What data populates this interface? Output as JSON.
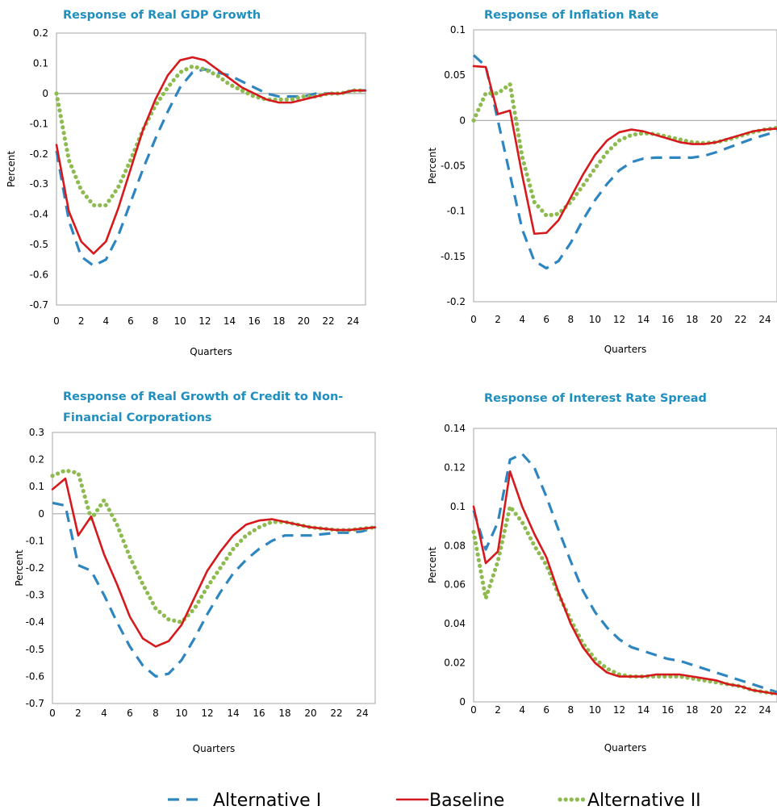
{
  "styles": {
    "Alternative I": {
      "color": "#2e86c1",
      "dash": "14,9",
      "width": 3.2,
      "cap": "butt"
    },
    "Baseline": {
      "color": "#d6191c",
      "dash": "",
      "width": 2.6,
      "cap": "round"
    },
    "Alternative II": {
      "color": "#8dbb4f",
      "dash": "0.1,7",
      "width": 5.2,
      "cap": "round"
    }
  },
  "legend": {
    "items": [
      "Alternative I",
      "Baseline",
      "Alternative II"
    ]
  },
  "chart_data": [
    {
      "type": "line",
      "title": [
        "Response of Real GDP Growth"
      ],
      "xlabel": "Quarters",
      "ylabel": "Percent",
      "xlim": [
        0,
        25
      ],
      "ylim": [
        -0.7,
        0.2
      ],
      "xticks": [
        0,
        2,
        4,
        6,
        8,
        10,
        12,
        14,
        16,
        18,
        20,
        22,
        24
      ],
      "yticks": [
        0.2,
        0.1,
        0,
        -0.1,
        -0.2,
        -0.3,
        -0.4,
        -0.5,
        -0.6,
        -0.7
      ],
      "yticklabels": [
        "0.2",
        "0.1",
        "0",
        "-0.1",
        "-0.2",
        "-0.3",
        "-0.4",
        "-0.5",
        "-0.6",
        "-0.7"
      ],
      "zero_line": true,
      "grid": false,
      "series": [
        {
          "name": "Alternative I",
          "x": [
            0,
            1,
            2,
            3,
            4,
            5,
            6,
            7,
            8,
            9,
            10,
            11,
            12,
            13,
            14,
            15,
            16,
            17,
            18,
            19,
            20,
            21,
            22,
            23,
            24,
            25
          ],
          "y": [
            -0.19,
            -0.42,
            -0.54,
            -0.57,
            -0.55,
            -0.47,
            -0.36,
            -0.25,
            -0.15,
            -0.06,
            0.02,
            0.07,
            0.08,
            0.07,
            0.06,
            0.04,
            0.02,
            0.0,
            -0.01,
            -0.01,
            -0.01,
            0.0,
            0.0,
            0.0,
            0.01,
            0.01
          ]
        },
        {
          "name": "Baseline",
          "x": [
            0,
            1,
            2,
            3,
            4,
            5,
            6,
            7,
            8,
            9,
            10,
            11,
            12,
            13,
            14,
            15,
            16,
            17,
            18,
            19,
            20,
            21,
            22,
            23,
            24,
            25
          ],
          "y": [
            -0.17,
            -0.39,
            -0.49,
            -0.53,
            -0.49,
            -0.38,
            -0.25,
            -0.12,
            -0.02,
            0.06,
            0.11,
            0.12,
            0.11,
            0.08,
            0.05,
            0.02,
            0.0,
            -0.02,
            -0.03,
            -0.03,
            -0.02,
            -0.01,
            0.0,
            0.0,
            0.01,
            0.01
          ]
        },
        {
          "name": "Alternative II",
          "x": [
            0,
            1,
            2,
            3,
            4,
            5,
            6,
            7,
            8,
            9,
            10,
            11,
            12,
            13,
            14,
            15,
            16,
            17,
            18,
            19,
            20,
            21,
            22,
            23,
            24,
            25
          ],
          "y": [
            0.0,
            -0.22,
            -0.32,
            -0.37,
            -0.37,
            -0.31,
            -0.22,
            -0.12,
            -0.04,
            0.02,
            0.07,
            0.09,
            0.08,
            0.06,
            0.03,
            0.01,
            -0.01,
            -0.02,
            -0.02,
            -0.02,
            -0.01,
            -0.01,
            0.0,
            0.0,
            0.01,
            0.01
          ]
        }
      ]
    },
    {
      "type": "line",
      "title": [
        "Response of Inflation Rate"
      ],
      "xlabel": "Quarters",
      "ylabel": "Percent",
      "xlim": [
        0,
        25
      ],
      "ylim": [
        -0.2,
        0.1
      ],
      "xticks": [
        0,
        2,
        4,
        6,
        8,
        10,
        12,
        14,
        16,
        18,
        20,
        22,
        24
      ],
      "yticks": [
        0.1,
        0.05,
        0,
        -0.05,
        -0.1,
        -0.15,
        -0.2
      ],
      "yticklabels": [
        "0.1",
        "0.05",
        "0",
        "-0.05",
        "-0.1",
        "-0.15",
        "-0.2"
      ],
      "zero_line": true,
      "grid": false,
      "series": [
        {
          "name": "Alternative I",
          "x": [
            0,
            1,
            2,
            3,
            4,
            5,
            6,
            7,
            8,
            9,
            10,
            11,
            12,
            13,
            14,
            15,
            16,
            17,
            18,
            19,
            20,
            21,
            22,
            23,
            24,
            25
          ],
          "y": [
            0.072,
            0.06,
            0.0,
            -0.06,
            -0.12,
            -0.155,
            -0.163,
            -0.155,
            -0.135,
            -0.11,
            -0.088,
            -0.07,
            -0.055,
            -0.046,
            -0.042,
            -0.041,
            -0.041,
            -0.041,
            -0.041,
            -0.039,
            -0.035,
            -0.03,
            -0.025,
            -0.02,
            -0.016,
            -0.012
          ]
        },
        {
          "name": "Baseline",
          "x": [
            0,
            1,
            2,
            3,
            4,
            5,
            6,
            7,
            8,
            9,
            10,
            11,
            12,
            13,
            14,
            15,
            16,
            17,
            18,
            19,
            20,
            21,
            22,
            23,
            24,
            25
          ],
          "y": [
            0.06,
            0.059,
            0.007,
            0.011,
            -0.06,
            -0.125,
            -0.124,
            -0.11,
            -0.085,
            -0.06,
            -0.038,
            -0.022,
            -0.013,
            -0.01,
            -0.012,
            -0.016,
            -0.02,
            -0.024,
            -0.026,
            -0.026,
            -0.024,
            -0.02,
            -0.016,
            -0.012,
            -0.01,
            -0.009
          ]
        },
        {
          "name": "Alternative II",
          "x": [
            0,
            1,
            2,
            3,
            4,
            5,
            6,
            7,
            8,
            9,
            10,
            11,
            12,
            13,
            14,
            15,
            16,
            17,
            18,
            19,
            20,
            21,
            22,
            23,
            24,
            25
          ],
          "y": [
            0.0,
            0.03,
            0.03,
            0.04,
            -0.04,
            -0.09,
            -0.105,
            -0.103,
            -0.09,
            -0.072,
            -0.053,
            -0.035,
            -0.022,
            -0.016,
            -0.014,
            -0.015,
            -0.018,
            -0.021,
            -0.024,
            -0.025,
            -0.024,
            -0.021,
            -0.017,
            -0.013,
            -0.01,
            -0.008
          ]
        }
      ]
    },
    {
      "type": "line",
      "title": [
        "Response of Real Growth of Credit to Non-",
        "Financial Corporations"
      ],
      "xlabel": "Quarters",
      "ylabel": "Percent",
      "xlim": [
        0,
        25
      ],
      "ylim": [
        -0.7,
        0.3
      ],
      "xticks": [
        0,
        2,
        4,
        6,
        8,
        10,
        12,
        14,
        16,
        18,
        20,
        22,
        24
      ],
      "yticks": [
        0.3,
        0.2,
        0.1,
        0,
        -0.1,
        -0.2,
        -0.3,
        -0.4,
        -0.5,
        -0.6,
        -0.7
      ],
      "yticklabels": [
        "0.3",
        "0.2",
        "0.1",
        "0",
        "-0.1",
        "-0.2",
        "-0.3",
        "-0.4",
        "-0.5",
        "-0.6",
        "-0.7"
      ],
      "zero_line": true,
      "grid": false,
      "series": [
        {
          "name": "Alternative I",
          "x": [
            0,
            1,
            2,
            3,
            4,
            5,
            6,
            7,
            8,
            9,
            10,
            11,
            12,
            13,
            14,
            15,
            16,
            17,
            18,
            19,
            20,
            21,
            22,
            23,
            24,
            25
          ],
          "y": [
            0.04,
            0.03,
            -0.19,
            -0.21,
            -0.3,
            -0.4,
            -0.49,
            -0.56,
            -0.6,
            -0.59,
            -0.54,
            -0.46,
            -0.37,
            -0.29,
            -0.22,
            -0.17,
            -0.13,
            -0.1,
            -0.08,
            -0.08,
            -0.08,
            -0.075,
            -0.07,
            -0.07,
            -0.065,
            -0.05
          ]
        },
        {
          "name": "Baseline",
          "x": [
            0,
            1,
            2,
            3,
            4,
            5,
            6,
            7,
            8,
            9,
            10,
            11,
            12,
            13,
            14,
            15,
            16,
            17,
            18,
            19,
            20,
            21,
            22,
            23,
            24,
            25
          ],
          "y": [
            0.09,
            0.13,
            -0.08,
            -0.01,
            -0.15,
            -0.26,
            -0.38,
            -0.46,
            -0.49,
            -0.47,
            -0.41,
            -0.31,
            -0.21,
            -0.14,
            -0.08,
            -0.04,
            -0.025,
            -0.02,
            -0.03,
            -0.04,
            -0.05,
            -0.055,
            -0.06,
            -0.06,
            -0.055,
            -0.05
          ]
        },
        {
          "name": "Alternative II",
          "x": [
            0,
            1,
            2,
            3,
            4,
            5,
            6,
            7,
            8,
            9,
            10,
            11,
            12,
            13,
            14,
            15,
            16,
            17,
            18,
            19,
            20,
            21,
            22,
            23,
            24,
            25
          ],
          "y": [
            0.14,
            0.16,
            0.15,
            -0.02,
            0.05,
            -0.04,
            -0.16,
            -0.26,
            -0.35,
            -0.39,
            -0.4,
            -0.35,
            -0.27,
            -0.2,
            -0.13,
            -0.08,
            -0.05,
            -0.03,
            -0.03,
            -0.04,
            -0.05,
            -0.055,
            -0.06,
            -0.06,
            -0.055,
            -0.05
          ]
        }
      ]
    },
    {
      "type": "line",
      "title": [
        "Response of Interest Rate Spread"
      ],
      "xlabel": "Quarters",
      "ylabel": "Percent",
      "xlim": [
        0,
        25
      ],
      "ylim": [
        0,
        0.14
      ],
      "xticks": [
        0,
        2,
        4,
        6,
        8,
        10,
        12,
        14,
        16,
        18,
        20,
        22,
        24
      ],
      "yticks": [
        0.14,
        0.12,
        0.1,
        0.08,
        0.06,
        0.04,
        0.02,
        0
      ],
      "yticklabels": [
        "0.14",
        "0.12",
        "0.1",
        "0.08",
        "0.06",
        "0.04",
        "0.02",
        "0"
      ],
      "zero_line": false,
      "grid": false,
      "series": [
        {
          "name": "Alternative I",
          "x": [
            0,
            1,
            2,
            3,
            4,
            5,
            6,
            7,
            8,
            9,
            10,
            11,
            12,
            13,
            14,
            15,
            16,
            17,
            18,
            19,
            20,
            21,
            22,
            23,
            24,
            25
          ],
          "y": [
            0.098,
            0.078,
            0.092,
            0.124,
            0.127,
            0.12,
            0.105,
            0.088,
            0.072,
            0.057,
            0.046,
            0.038,
            0.032,
            0.028,
            0.026,
            0.024,
            0.022,
            0.021,
            0.019,
            0.017,
            0.015,
            0.013,
            0.011,
            0.009,
            0.007,
            0.005
          ]
        },
        {
          "name": "Baseline",
          "x": [
            0,
            1,
            2,
            3,
            4,
            5,
            6,
            7,
            8,
            9,
            10,
            11,
            12,
            13,
            14,
            15,
            16,
            17,
            18,
            19,
            20,
            21,
            22,
            23,
            24,
            25
          ],
          "y": [
            0.1,
            0.071,
            0.077,
            0.118,
            0.1,
            0.086,
            0.074,
            0.056,
            0.04,
            0.028,
            0.02,
            0.015,
            0.013,
            0.013,
            0.013,
            0.014,
            0.014,
            0.014,
            0.013,
            0.012,
            0.011,
            0.009,
            0.008,
            0.006,
            0.005,
            0.004
          ]
        },
        {
          "name": "Alternative II",
          "x": [
            0,
            1,
            2,
            3,
            4,
            5,
            6,
            7,
            8,
            9,
            10,
            11,
            12,
            13,
            14,
            15,
            16,
            17,
            18,
            19,
            20,
            21,
            22,
            23,
            24,
            25
          ],
          "y": [
            0.087,
            0.053,
            0.072,
            0.1,
            0.092,
            0.08,
            0.07,
            0.055,
            0.042,
            0.03,
            0.022,
            0.017,
            0.014,
            0.013,
            0.013,
            0.013,
            0.013,
            0.013,
            0.012,
            0.011,
            0.01,
            0.009,
            0.008,
            0.006,
            0.005,
            0.004
          ]
        }
      ]
    }
  ]
}
